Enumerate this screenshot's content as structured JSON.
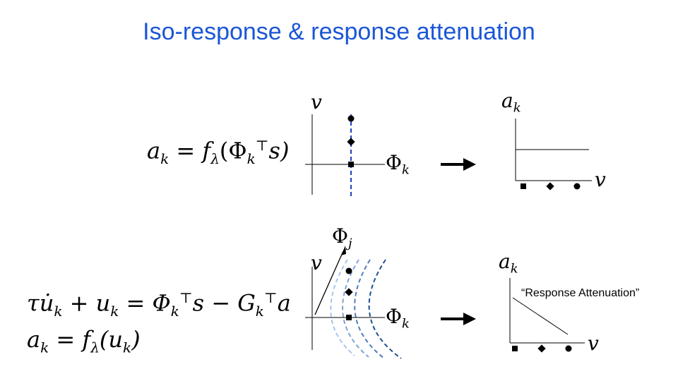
{
  "title": "Iso-response & response attenuation",
  "top_row": {
    "equation": {
      "a": "a",
      "k": "k",
      "eq": " = f",
      "lambda": "λ",
      "lparen": "(Φ",
      "T": "⊤",
      "s": "s)"
    },
    "space_plot": {
      "y_label": "v",
      "x_label": "Φ",
      "x_sub": "k"
    },
    "response_plot": {
      "y_label": "a",
      "y_sub": "k",
      "x_label": "v"
    },
    "arrow": "right-arrow"
  },
  "bottom_row": {
    "equation_1": {
      "tau": "τu̇",
      "k1": "k",
      "plus": " + u",
      "k2": "k",
      "eq": " = Φ",
      "k3": "k",
      "T1": "⊤",
      "minus": "s − G",
      "k4": "k",
      "T2": "⊤",
      "a": "a"
    },
    "equation_2": {
      "a": "a",
      "k1": "k",
      "eq": " = f",
      "lambda": "λ",
      "paren": "(u",
      "k2": "k",
      "close": ")"
    },
    "space_plot": {
      "y_label": "v",
      "x_label": "Φ",
      "x_sub": "k",
      "diag_label": "Φ",
      "diag_sub": "j"
    },
    "response_plot": {
      "y_label": "a",
      "y_sub": "k",
      "x_label": "v",
      "annotation": "“Response Attenuation”"
    },
    "arrow": "right-arrow"
  },
  "colors": {
    "title": "#1a56d6",
    "iso_line_top": "#1f3fbf",
    "iso_curves": [
      "#a9c6ea",
      "#7ea4d6",
      "#4f7dbd",
      "#1f4f8f"
    ]
  },
  "markers": [
    "square",
    "diamond",
    "circle"
  ]
}
